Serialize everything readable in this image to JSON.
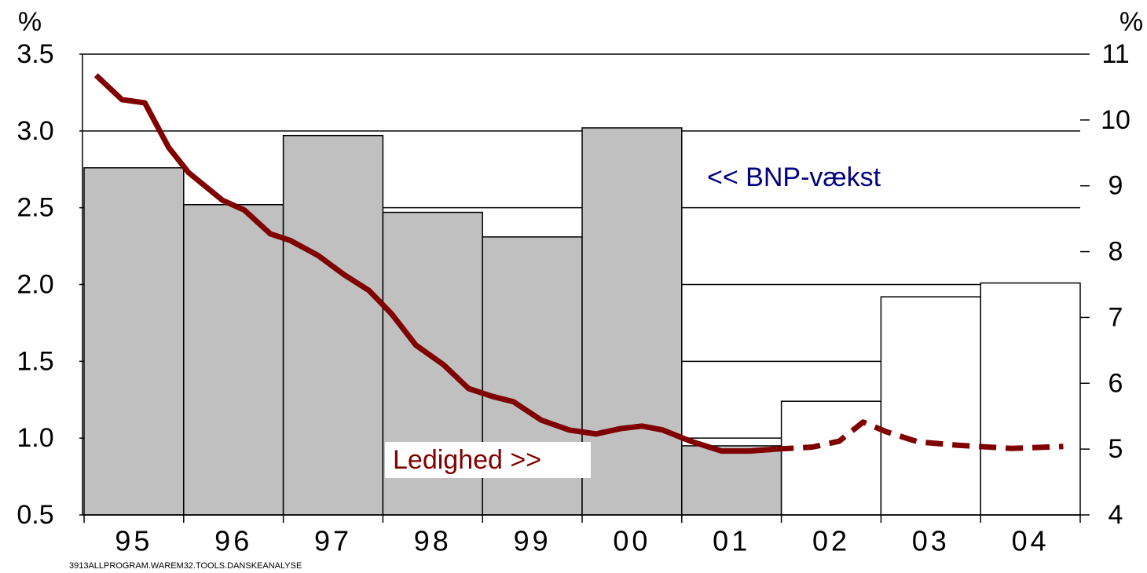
{
  "chart_data": {
    "type": "bar",
    "left_unit": "%",
    "right_unit": "%",
    "categories": [
      "95",
      "96",
      "97",
      "98",
      "99",
      "00",
      "01",
      "02",
      "03",
      "04"
    ],
    "values": [
      2.76,
      2.52,
      2.97,
      2.47,
      2.31,
      3.02,
      0.95,
      1.24,
      1.92,
      2.01
    ],
    "bar_colors": [
      "#c0c0c0",
      "#c0c0c0",
      "#c0c0c0",
      "#c0c0c0",
      "#c0c0c0",
      "#c0c0c0",
      "#c0c0c0",
      "#ffffff",
      "#ffffff",
      "#ffffff"
    ],
    "ylim": [
      0.5,
      3.5
    ],
    "yticks": [
      {
        "value": 0.5,
        "label": "0.5"
      },
      {
        "value": 1,
        "label": "1.0"
      },
      {
        "value": 1.5,
        "label": "1.5"
      },
      {
        "value": 2,
        "label": "2.0"
      },
      {
        "value": 2.5,
        "label": "2.5"
      },
      {
        "value": 3,
        "label": "3.0"
      },
      {
        "value": 3.5,
        "label": "3.5"
      }
    ],
    "y2lim": [
      4,
      11
    ],
    "y2ticks": [
      4,
      5,
      6,
      7,
      8,
      9,
      10,
      11
    ],
    "grid": true,
    "lines": [
      {
        "axis": "y2",
        "color": "#800000",
        "dashed": false,
        "x": [
          0.12,
          0.38,
          0.61,
          0.85,
          1.05,
          1.39,
          1.61,
          1.87,
          2.07,
          2.35,
          2.61,
          2.86,
          3.09,
          3.33,
          3.61,
          3.86,
          4.1,
          4.31,
          4.59,
          4.87,
          5.14,
          5.38,
          5.6,
          5.81,
          6.09,
          6.4,
          6.68,
          6.95
        ],
        "values": [
          10.68,
          10.31,
          10.26,
          9.58,
          9.2,
          8.78,
          8.63,
          8.27,
          8.17,
          7.94,
          7.65,
          7.41,
          7.05,
          6.58,
          6.28,
          5.92,
          5.8,
          5.72,
          5.44,
          5.29,
          5.23,
          5.31,
          5.35,
          5.29,
          5.12,
          4.97,
          4.97,
          5.0
        ]
      },
      {
        "axis": "y2",
        "color": "#800000",
        "dashed": true,
        "x": [
          6.95,
          7.31,
          7.58,
          7.82,
          8.06,
          8.37,
          8.76,
          9.31,
          9.83
        ],
        "values": [
          5.0,
          5.03,
          5.12,
          5.41,
          5.26,
          5.11,
          5.06,
          5.01,
          5.04
        ]
      }
    ],
    "annotations": [
      "<< BNP-vækst",
      "Ledighed >>"
    ],
    "footer": "3913ALLPROGRAM.WAREM32.TOOLS.DANSKEANALYSE"
  }
}
